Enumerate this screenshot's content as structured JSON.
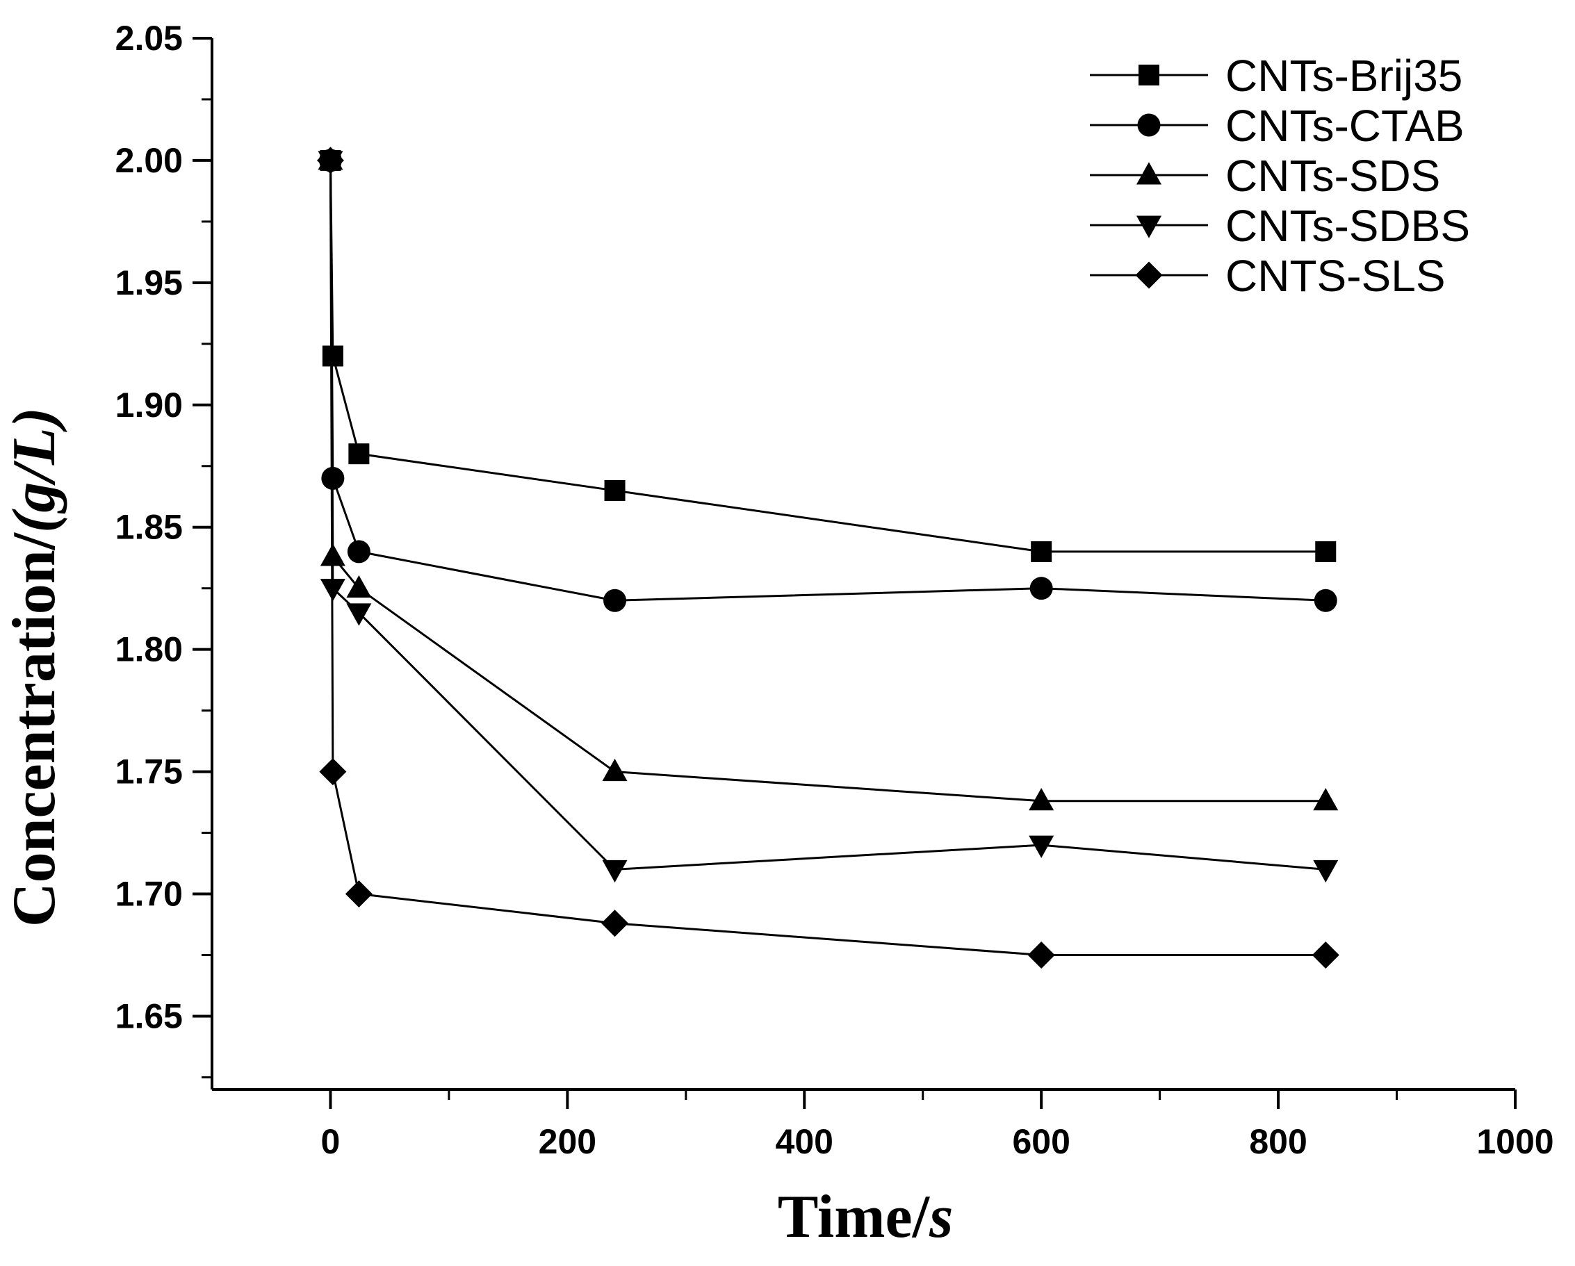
{
  "chart_data": {
    "type": "line",
    "title": "",
    "xlabel": {
      "prefix": "Time/",
      "unit": "s"
    },
    "ylabel": {
      "prefix": "Concentration/",
      "unit": "(g/L)"
    },
    "xlim": [
      -100,
      1000
    ],
    "ylim": [
      1.62,
      2.05
    ],
    "xticks": [
      0,
      200,
      400,
      600,
      800,
      1000
    ],
    "xtick_labels": [
      "0",
      "200",
      "400",
      "600",
      "800",
      "1000"
    ],
    "yticks": [
      1.65,
      1.7,
      1.75,
      1.8,
      1.85,
      1.9,
      1.95,
      2.0,
      2.05
    ],
    "ytick_labels": [
      "1.65",
      "1.70",
      "1.75",
      "1.80",
      "1.85",
      "1.90",
      "1.95",
      "2.00",
      "2.05"
    ],
    "grid": false,
    "legend_position": "top-right",
    "series": [
      {
        "name": "CNTs-Brij35",
        "marker": "square",
        "x": [
          0,
          2,
          24,
          240,
          600,
          840
        ],
        "y": [
          2.0,
          1.92,
          1.88,
          1.865,
          1.84,
          1.84
        ]
      },
      {
        "name": "CNTs-CTAB",
        "marker": "circle",
        "x": [
          0,
          2,
          24,
          240,
          600,
          840
        ],
        "y": [
          2.0,
          1.87,
          1.84,
          1.82,
          1.825,
          1.82
        ]
      },
      {
        "name": "CNTs-SDS",
        "marker": "triangle-up",
        "x": [
          0,
          2,
          24,
          240,
          600,
          840
        ],
        "y": [
          2.0,
          1.838,
          1.825,
          1.75,
          1.738,
          1.738
        ]
      },
      {
        "name": "CNTs-SDBS",
        "marker": "triangle-down",
        "x": [
          0,
          2,
          24,
          240,
          600,
          840
        ],
        "y": [
          2.0,
          1.825,
          1.815,
          1.71,
          1.72,
          1.71
        ]
      },
      {
        "name": "CNTS-SLS",
        "marker": "diamond",
        "x": [
          0,
          2,
          24,
          240,
          600,
          840
        ],
        "y": [
          2.0,
          1.75,
          1.7,
          1.688,
          1.675,
          1.675
        ]
      }
    ]
  }
}
